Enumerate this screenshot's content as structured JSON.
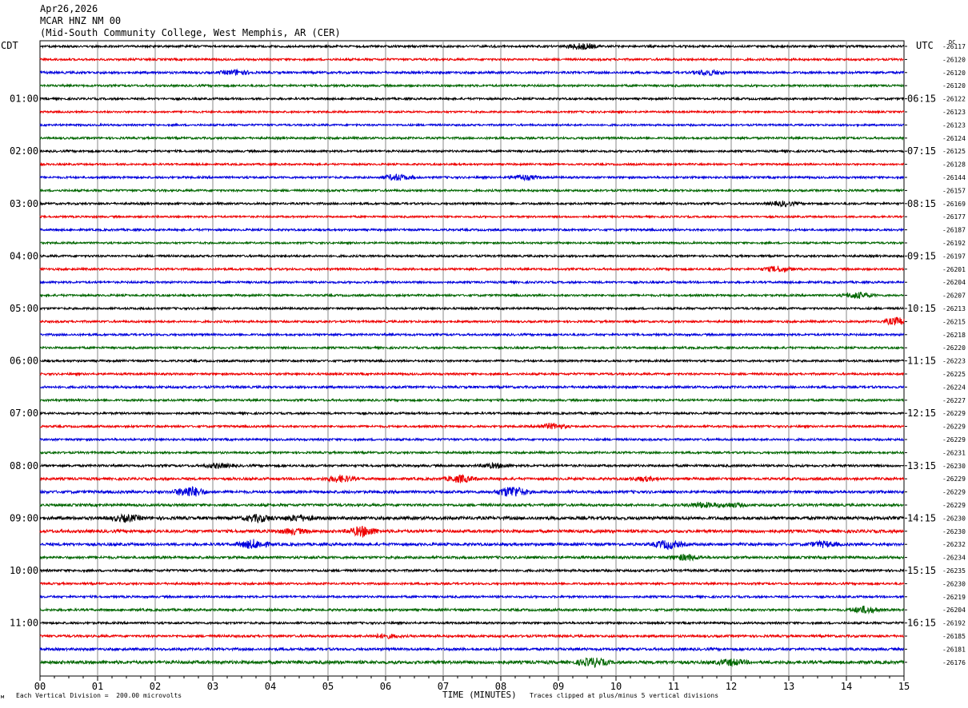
{
  "header": {
    "date": "Apr26,2026",
    "station": "MCAR HNZ NM 00",
    "location": "(Mid-South Community College, West Memphis, AR (CER)"
  },
  "corner_labels": {
    "left": "CDT",
    "right": "UTC",
    "dc": "DC"
  },
  "footer": {
    "division": "Each Vertical Division =  200.00 microvolts",
    "axis_label": "TIME (MINUTES)",
    "clipping": "Traces clipped at plus/minus 5 vertical divisions",
    "mark": "м"
  },
  "colors": {
    "trace_cycle": [
      "#000000",
      "#ee0000",
      "#0000dd",
      "#006600"
    ],
    "grid": "#888888",
    "frame": "#000000"
  },
  "chart_data": {
    "type": "line",
    "title": "",
    "xlabel": "TIME (MINUTES)",
    "x_ticks": [
      "00",
      "01",
      "02",
      "03",
      "04",
      "05",
      "06",
      "07",
      "08",
      "09",
      "10",
      "11",
      "12",
      "13",
      "14",
      "15"
    ],
    "xlim": [
      0,
      15
    ],
    "line_interval_minutes": 15,
    "left_hour_labels": [
      "01:00",
      "02:00",
      "03:00",
      "04:00",
      "05:00",
      "06:00",
      "07:00",
      "08:00",
      "09:00",
      "10:00",
      "11:00"
    ],
    "right_hour_labels": [
      "06:15",
      "07:15",
      "08:15",
      "09:15",
      "10:15",
      "11:15",
      "12:15",
      "13:15",
      "14:15",
      "15:15",
      "16:15"
    ],
    "dc_offsets": [
      -26117,
      -26120,
      -26120,
      -26120,
      -26122,
      -26123,
      -26123,
      -26124,
      -26125,
      -26128,
      -26144,
      -26157,
      -26169,
      -26177,
      -26187,
      -26192,
      -26197,
      -26201,
      -26204,
      -26207,
      -26213,
      -26215,
      -26218,
      -26220,
      -26223,
      -26225,
      -26224,
      -26227,
      -26229,
      -26229,
      -26229,
      -26231,
      -26230,
      -26229,
      -26229,
      -26229,
      -26230,
      -26230,
      -26232,
      -26234,
      -26235,
      -26230,
      -26219,
      -26204,
      -26192,
      -26185,
      -26181,
      -26176
    ],
    "series": [
      {
        "line": 1,
        "amplitude": 1.0,
        "events": [
          {
            "minute": 9.4,
            "size": 2.2
          }
        ]
      },
      {
        "line": 2,
        "amplitude": 1.0,
        "events": []
      },
      {
        "line": 3,
        "amplitude": 1.1,
        "events": [
          {
            "minute": 3.4,
            "size": 1.8
          },
          {
            "minute": 11.6,
            "size": 1.8
          }
        ]
      },
      {
        "line": 4,
        "amplitude": 1.0,
        "events": []
      },
      {
        "line": 5,
        "amplitude": 1.0,
        "events": []
      },
      {
        "line": 6,
        "amplitude": 0.9,
        "events": []
      },
      {
        "line": 7,
        "amplitude": 0.9,
        "events": []
      },
      {
        "line": 8,
        "amplitude": 1.0,
        "events": []
      },
      {
        "line": 9,
        "amplitude": 1.0,
        "events": []
      },
      {
        "line": 10,
        "amplitude": 0.9,
        "events": []
      },
      {
        "line": 11,
        "amplitude": 1.0,
        "events": [
          {
            "minute": 6.2,
            "size": 2.2
          },
          {
            "minute": 8.4,
            "size": 1.8
          }
        ]
      },
      {
        "line": 12,
        "amplitude": 1.0,
        "events": []
      },
      {
        "line": 13,
        "amplitude": 1.0,
        "events": [
          {
            "minute": 12.9,
            "size": 1.6
          }
        ]
      },
      {
        "line": 14,
        "amplitude": 0.9,
        "events": []
      },
      {
        "line": 15,
        "amplitude": 1.0,
        "events": []
      },
      {
        "line": 16,
        "amplitude": 0.9,
        "events": []
      },
      {
        "line": 17,
        "amplitude": 1.0,
        "events": []
      },
      {
        "line": 18,
        "amplitude": 1.0,
        "events": [
          {
            "minute": 12.8,
            "size": 2.0
          }
        ]
      },
      {
        "line": 19,
        "amplitude": 1.0,
        "events": []
      },
      {
        "line": 20,
        "amplitude": 1.0,
        "events": [
          {
            "minute": 14.2,
            "size": 2.2
          }
        ]
      },
      {
        "line": 21,
        "amplitude": 1.0,
        "events": []
      },
      {
        "line": 22,
        "amplitude": 1.0,
        "events": [
          {
            "minute": 14.9,
            "size": 3.0
          }
        ]
      },
      {
        "line": 23,
        "amplitude": 1.0,
        "events": []
      },
      {
        "line": 24,
        "amplitude": 1.0,
        "events": []
      },
      {
        "line": 25,
        "amplitude": 1.0,
        "events": []
      },
      {
        "line": 26,
        "amplitude": 1.0,
        "events": []
      },
      {
        "line": 27,
        "amplitude": 1.1,
        "events": []
      },
      {
        "line": 28,
        "amplitude": 1.0,
        "events": []
      },
      {
        "line": 29,
        "amplitude": 1.0,
        "events": []
      },
      {
        "line": 30,
        "amplitude": 1.0,
        "events": [
          {
            "minute": 8.9,
            "size": 2.0
          }
        ]
      },
      {
        "line": 31,
        "amplitude": 1.0,
        "events": []
      },
      {
        "line": 32,
        "amplitude": 1.0,
        "events": []
      },
      {
        "line": 33,
        "amplitude": 1.1,
        "events": [
          {
            "minute": 3.1,
            "size": 1.5
          },
          {
            "minute": 7.9,
            "size": 1.5
          }
        ]
      },
      {
        "line": 34,
        "amplitude": 1.2,
        "events": [
          {
            "minute": 5.2,
            "size": 2.4
          },
          {
            "minute": 7.3,
            "size": 2.6
          },
          {
            "minute": 10.5,
            "size": 1.4
          }
        ]
      },
      {
        "line": 35,
        "amplitude": 1.3,
        "events": [
          {
            "minute": 2.6,
            "size": 4.0
          },
          {
            "minute": 8.2,
            "size": 4.2
          }
        ]
      },
      {
        "line": 36,
        "amplitude": 1.2,
        "events": [
          {
            "minute": 11.5,
            "size": 1.8
          },
          {
            "minute": 12.0,
            "size": 1.4
          }
        ]
      },
      {
        "line": 37,
        "amplitude": 1.5,
        "events": [
          {
            "minute": 1.5,
            "size": 2.2
          },
          {
            "minute": 3.8,
            "size": 2.4
          },
          {
            "minute": 4.5,
            "size": 2.0
          }
        ]
      },
      {
        "line": 38,
        "amplitude": 1.4,
        "events": [
          {
            "minute": 5.6,
            "size": 3.6
          },
          {
            "minute": 4.4,
            "size": 1.8
          }
        ]
      },
      {
        "line": 39,
        "amplitude": 1.3,
        "events": [
          {
            "minute": 3.7,
            "size": 3.2
          },
          {
            "minute": 10.9,
            "size": 3.0
          },
          {
            "minute": 13.6,
            "size": 2.0
          }
        ]
      },
      {
        "line": 40,
        "amplitude": 1.2,
        "events": [
          {
            "minute": 11.2,
            "size": 2.0
          }
        ]
      },
      {
        "line": 41,
        "amplitude": 1.1,
        "events": []
      },
      {
        "line": 42,
        "amplitude": 1.0,
        "events": []
      },
      {
        "line": 43,
        "amplitude": 1.0,
        "events": []
      },
      {
        "line": 44,
        "amplitude": 1.1,
        "events": [
          {
            "minute": 14.3,
            "size": 2.4
          }
        ]
      },
      {
        "line": 45,
        "amplitude": 1.0,
        "events": []
      },
      {
        "line": 46,
        "amplitude": 1.1,
        "events": [
          {
            "minute": 6.0,
            "size": 1.4
          }
        ]
      },
      {
        "line": 47,
        "amplitude": 1.2,
        "events": []
      },
      {
        "line": 48,
        "amplitude": 1.5,
        "events": [
          {
            "minute": 9.6,
            "size": 3.0
          },
          {
            "minute": 12.0,
            "size": 2.0
          }
        ]
      }
    ]
  }
}
